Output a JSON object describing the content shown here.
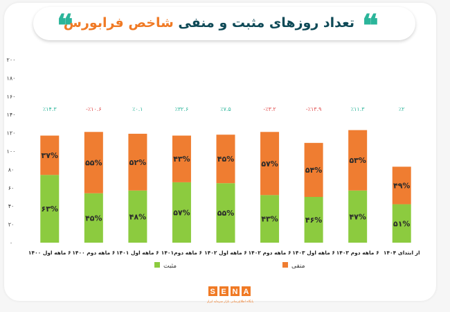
{
  "header": {
    "title_main": "تعداد روزهای مثبت و منفی",
    "title_accent": "شاخص فرابورس",
    "quote_glyph": "❝"
  },
  "brand": {
    "logo_text": "SENA",
    "tagline": "پایگاه اطلاع‌رسانی بازار سرمایه ایران"
  },
  "colors": {
    "positive": "#8ccb3f",
    "negative": "#ef7d31",
    "accent": "#2bb59a"
  },
  "chart_data": {
    "type": "bar",
    "stacked": true,
    "categories": [
      "۶ ماهه اول ۱۴۰۰",
      "۶ ماهه دوم ۱۴۰۰",
      "۶ ماهه اول ۱۴۰۱",
      "۶ ماهه دوم۱۴۰۱",
      "۶ ماهه اول ۱۴۰۲",
      "۶ ماهه دوم ۱۴۰۲",
      "۶ ماهه اول ۱۴۰۳",
      "۶ ماهه دوم ۱۴۰۳",
      "از ابتدای ۱۴۰۴"
    ],
    "series": [
      {
        "name": "مثبت",
        "color": "#8ccb3f",
        "values": [
          74,
          54,
          57,
          66,
          65,
          52,
          50,
          57,
          42
        ],
        "labels": [
          "۶۳%",
          "۴۵%",
          "۴۸%",
          "۵۷%",
          "۵۵%",
          "۴۳%",
          "۴۶%",
          "۴۷%",
          "۵۱%"
        ]
      },
      {
        "name": "منفی",
        "color": "#ef7d31",
        "values": [
          43,
          67,
          62,
          51,
          53,
          69,
          59,
          66,
          41
        ],
        "labels": [
          "۳۷%",
          "۵۵%",
          "۵۲%",
          "۴۳%",
          "۴۵%",
          "۵۷%",
          "۵۴%",
          "۵۳%",
          "۴۹%"
        ]
      }
    ],
    "top_labels": [
      "٪۱۴.۳",
      "-٪۱۰.۶",
      "٪۰.۱",
      "٪۳۲.۶",
      "٪۷.۵",
      "-٪۳.۲",
      "-٪۱۳.۹",
      "٪۱۱.۳",
      "٪۲"
    ],
    "top_label_colors": [
      "#2bb59a",
      "#e04848",
      "#2bb59a",
      "#2bb59a",
      "#2bb59a",
      "#e04848",
      "#e04848",
      "#2bb59a",
      "#2bb59a"
    ],
    "yticks": [
      0,
      20,
      40,
      60,
      80,
      100,
      120,
      140,
      160,
      180,
      200
    ],
    "ytick_labels": [
      "۰",
      "۲۰",
      "۴۰",
      "۶۰",
      "۸۰",
      "۱۰۰",
      "۱۲۰",
      "۱۴۰",
      "۱۶۰",
      "۱۸۰",
      "۲۰۰"
    ],
    "ylim": [
      0,
      200
    ],
    "grid": false,
    "legend_position": "bottom"
  }
}
